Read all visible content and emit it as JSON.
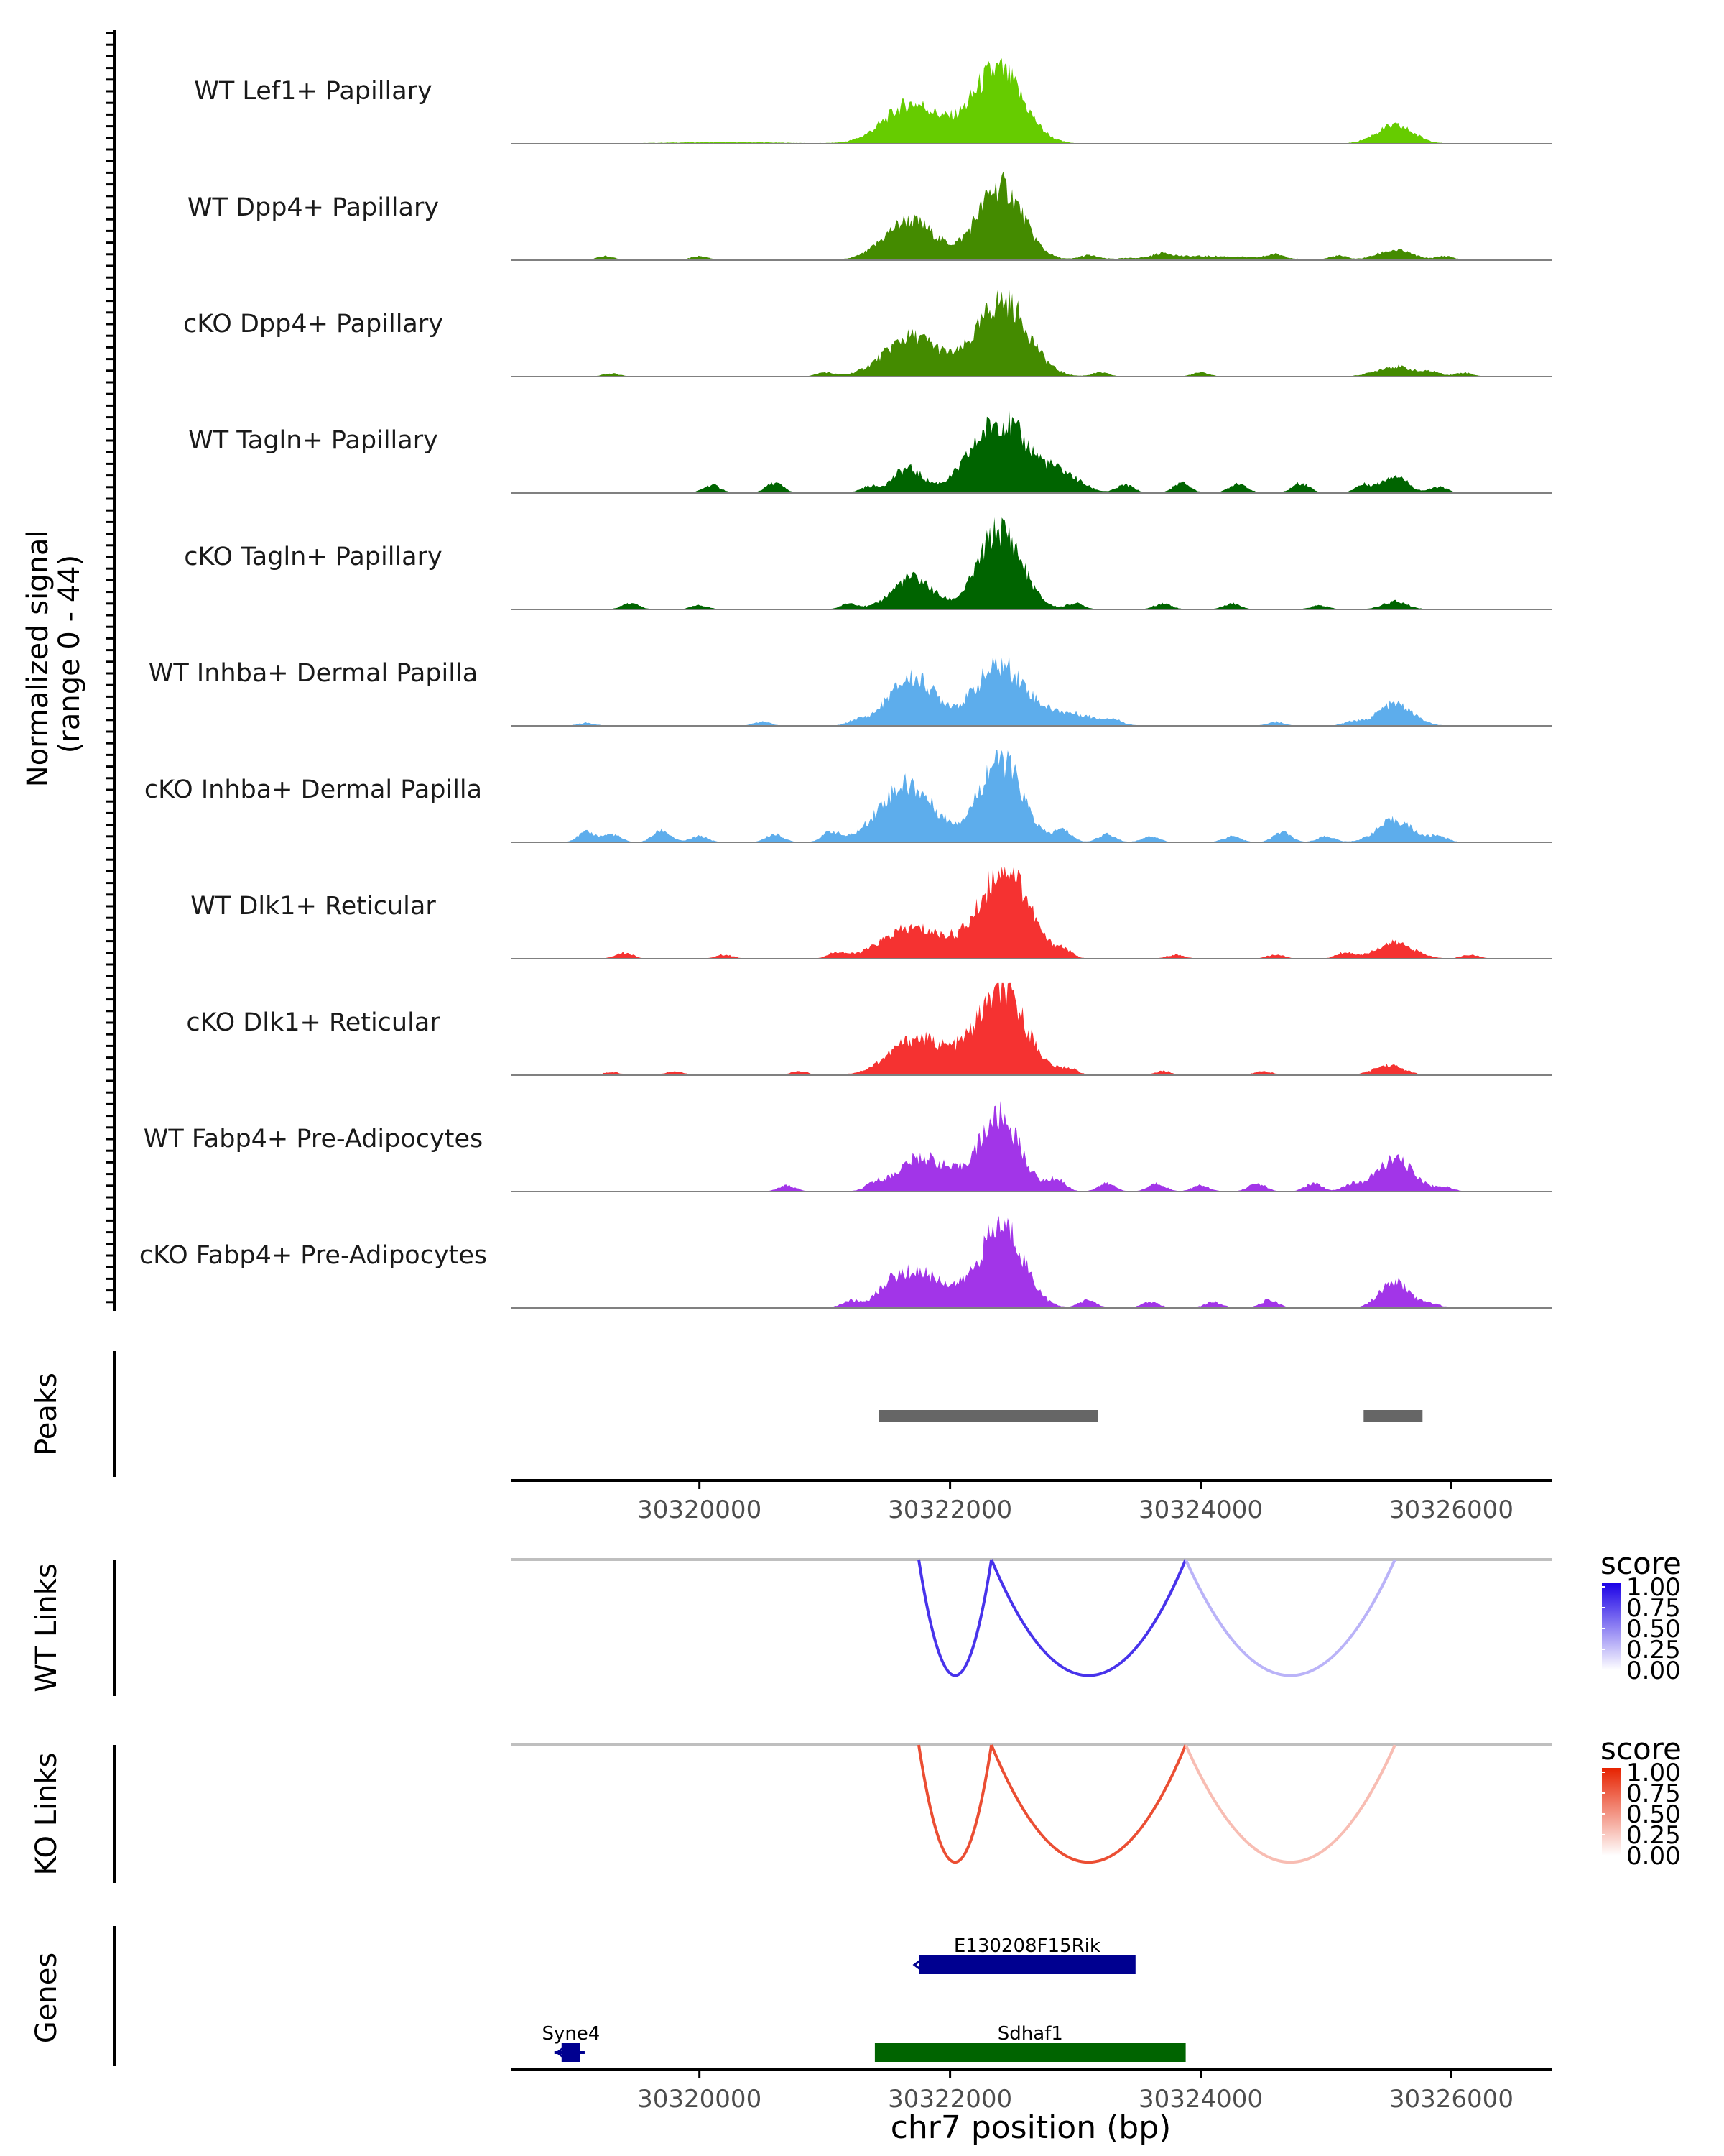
{
  "chart_data": {
    "type": "genome-coverage",
    "region": "chr7",
    "xrange": [
      30318500,
      30326800
    ],
    "coverage": {
      "ylabel_line1": "Normalized signal",
      "ylabel_line2": "(range 0 - 44)",
      "yrange": [
        0,
        44
      ],
      "baseline_color": "#808080",
      "tracks": [
        {
          "name": "WT Lef1+ Papillary",
          "color": "#66CC00",
          "scale": 1.0,
          "peaks": [
            [
              30321700,
              220,
              20
            ],
            [
              30322380,
              200,
              37
            ],
            [
              30325550,
              150,
              9
            ],
            [
              30320200,
              500,
              0.8
            ]
          ],
          "islands": []
        },
        {
          "name": "WT Dpp4+ Papillary",
          "color": "#448B00",
          "scale": 1.0,
          "peaks": [
            [
              30321680,
              200,
              20
            ],
            [
              30322400,
              180,
              37
            ],
            [
              30325550,
              140,
              5
            ],
            [
              30324000,
              500,
              2
            ]
          ],
          "islands": [
            [
              30319250,
              2
            ],
            [
              30320000,
              2
            ],
            [
              30323100,
              2
            ],
            [
              30323700,
              2
            ],
            [
              30324600,
              2
            ],
            [
              30325100,
              2
            ],
            [
              30325950,
              2
            ]
          ]
        },
        {
          "name": "cKO Dpp4+ Papillary",
          "color": "#448B00",
          "scale": 1.0,
          "peaks": [
            [
              30321700,
              220,
              20
            ],
            [
              30322420,
              200,
              38
            ],
            [
              30325550,
              150,
              5
            ]
          ],
          "islands": [
            [
              30319300,
              1.5
            ],
            [
              30321000,
              2
            ],
            [
              30323200,
              2
            ],
            [
              30324000,
              2
            ],
            [
              30325850,
              2
            ],
            [
              30326100,
              2
            ]
          ]
        },
        {
          "name": "WT Tagln+ Papillary",
          "color": "#006400",
          "scale": 1.0,
          "peaks": [
            [
              30321660,
              120,
              12
            ],
            [
              30322400,
              230,
              36
            ],
            [
              30325550,
              100,
              9
            ],
            [
              30322900,
              150,
              8
            ]
          ],
          "islands": [
            [
              30320100,
              4
            ],
            [
              30320600,
              5
            ],
            [
              30321350,
              3
            ],
            [
              30323400,
              4
            ],
            [
              30323850,
              5
            ],
            [
              30324300,
              5
            ],
            [
              30324800,
              5
            ],
            [
              30325300,
              4
            ],
            [
              30325900,
              3
            ]
          ]
        },
        {
          "name": "cKO Tagln+ Papillary",
          "color": "#006400",
          "scale": 1.0,
          "peaks": [
            [
              30321700,
              160,
              16
            ],
            [
              30322400,
              170,
              40
            ],
            [
              30325550,
              100,
              4
            ]
          ],
          "islands": [
            [
              30319450,
              3
            ],
            [
              30320000,
              2
            ],
            [
              30321200,
              3
            ],
            [
              30323000,
              3
            ],
            [
              30323700,
              3
            ],
            [
              30324250,
              3
            ],
            [
              30324950,
              2
            ]
          ]
        },
        {
          "name": "WT Inhba+ Dermal Papilla",
          "color": "#5DADEC",
          "scale": 1.0,
          "peaks": [
            [
              30321700,
              190,
              24
            ],
            [
              30322400,
              200,
              30
            ],
            [
              30325550,
              140,
              11
            ],
            [
              30322950,
              220,
              6
            ]
          ],
          "islands": [
            [
              30319100,
              1.5
            ],
            [
              30320500,
              2
            ],
            [
              30321250,
              2
            ],
            [
              30323300,
              2
            ],
            [
              30324600,
              2
            ],
            [
              30325200,
              2
            ]
          ]
        },
        {
          "name": "cKO Inhba+ Dermal Papilla",
          "color": "#5DADEC",
          "scale": 1.0,
          "peaks": [
            [
              30321700,
              200,
              24
            ],
            [
              30322400,
              170,
              42
            ],
            [
              30325550,
              140,
              11
            ],
            [
              30321500,
              180,
              8
            ]
          ],
          "islands": [
            [
              30319100,
              5
            ],
            [
              30319300,
              4
            ],
            [
              30319700,
              6
            ],
            [
              30320000,
              3
            ],
            [
              30320600,
              4
            ],
            [
              30321050,
              5
            ],
            [
              30322900,
              6
            ],
            [
              30323250,
              4
            ],
            [
              30323600,
              3
            ],
            [
              30324250,
              3
            ],
            [
              30324650,
              5
            ],
            [
              30325000,
              3
            ],
            [
              30325900,
              3
            ]
          ]
        },
        {
          "name": "WT Dlk1+ Reticular",
          "color": "#F53231",
          "scale": 1.0,
          "peaks": [
            [
              30321650,
              220,
              12
            ],
            [
              30322450,
              180,
              44
            ],
            [
              30325550,
              150,
              8
            ],
            [
              30322050,
              300,
              7
            ]
          ],
          "islands": [
            [
              30319400,
              3
            ],
            [
              30320200,
              2
            ],
            [
              30321100,
              3
            ],
            [
              30322900,
              4
            ],
            [
              30323800,
              2
            ],
            [
              30324600,
              2
            ],
            [
              30325150,
              3
            ],
            [
              30326150,
              2
            ]
          ]
        },
        {
          "name": "cKO Dlk1+ Reticular",
          "color": "#F53231",
          "scale": 1.0,
          "peaks": [
            [
              30321700,
              200,
              14
            ],
            [
              30322420,
              190,
              39
            ],
            [
              30325500,
              120,
              5
            ],
            [
              30322000,
              300,
              7
            ]
          ],
          "islands": [
            [
              30319300,
              1.5
            ],
            [
              30319800,
              2
            ],
            [
              30320800,
              2
            ],
            [
              30322950,
              3
            ],
            [
              30323700,
              2
            ],
            [
              30324500,
              2
            ]
          ]
        },
        {
          "name": "WT Fabp4+ Pre-Adipocytes",
          "color": "#A235E8",
          "scale": 1.0,
          "peaks": [
            [
              30321750,
              180,
              15
            ],
            [
              30322400,
              160,
              36
            ],
            [
              30325550,
              150,
              16
            ],
            [
              30322050,
              220,
              5
            ]
          ],
          "islands": [
            [
              30320700,
              3
            ],
            [
              30321400,
              3
            ],
            [
              30322850,
              6
            ],
            [
              30323250,
              4
            ],
            [
              30323650,
              4
            ],
            [
              30324000,
              3
            ],
            [
              30324450,
              4
            ],
            [
              30324900,
              4
            ],
            [
              30325200,
              3
            ],
            [
              30325950,
              2
            ]
          ]
        },
        {
          "name": "cKO Fabp4+ Pre-Adipocytes",
          "color": "#A235E8",
          "scale": 1.0,
          "peaks": [
            [
              30321700,
              200,
              17
            ],
            [
              30322420,
              170,
              40
            ],
            [
              30325550,
              120,
              13
            ],
            [
              30322050,
              220,
              5
            ]
          ],
          "islands": [
            [
              30321200,
              3
            ],
            [
              30321500,
              3
            ],
            [
              30323100,
              4
            ],
            [
              30323600,
              3
            ],
            [
              30324100,
              3
            ],
            [
              30324550,
              4
            ],
            [
              30325850,
              2
            ]
          ]
        }
      ]
    },
    "peaks": {
      "label": "Peaks",
      "color": "#666666",
      "intervals": [
        [
          30321430,
          30323180
        ],
        [
          30325300,
          30325770
        ]
      ]
    },
    "x_axis": {
      "ticks": [
        30320000,
        30322000,
        30324000,
        30326000
      ],
      "tick_labels": [
        "30320000",
        "30322000",
        "30324000",
        "30326000"
      ],
      "xlabel": "chr7 position (bp)"
    },
    "links": [
      {
        "label": "WT Links",
        "legend_title": "score",
        "low_color": "#FFFFFF",
        "high_color": "#1A00E6",
        "legend_ticks": [
          "1.00",
          "0.75",
          "0.50",
          "0.25",
          "0.00"
        ],
        "arcs": [
          {
            "start": 30321750,
            "end": 30322330,
            "score": 0.8,
            "depth": 0.85
          },
          {
            "start": 30322330,
            "end": 30323880,
            "score": 0.8,
            "depth": 0.85
          },
          {
            "start": 30323880,
            "end": 30325550,
            "score": 0.3,
            "depth": 0.85
          }
        ]
      },
      {
        "label": "KO Links",
        "legend_title": "score",
        "low_color": "#FFFFFF",
        "high_color": "#E62200",
        "legend_ticks": [
          "1.00",
          "0.75",
          "0.50",
          "0.25",
          "0.00"
        ],
        "arcs": [
          {
            "start": 30321750,
            "end": 30322330,
            "score": 0.8,
            "depth": 0.85
          },
          {
            "start": 30322330,
            "end": 30323880,
            "score": 0.8,
            "depth": 0.85
          },
          {
            "start": 30323880,
            "end": 30325550,
            "score": 0.3,
            "depth": 0.85
          }
        ]
      }
    ],
    "genes": {
      "label": "Genes",
      "items": [
        {
          "name": "E130208F15Rik",
          "start": 30321750,
          "end": 30323480,
          "color": "#000090",
          "row": 0,
          "strand": "-"
        },
        {
          "name": "Syne4",
          "start": 30318900,
          "end": 30319050,
          "color": "#000090",
          "row": 1,
          "strand": "-"
        },
        {
          "name": "Sdhaf1",
          "start": 30321400,
          "end": 30323880,
          "color": "#006400",
          "row": 1,
          "strand": "+"
        }
      ]
    }
  }
}
